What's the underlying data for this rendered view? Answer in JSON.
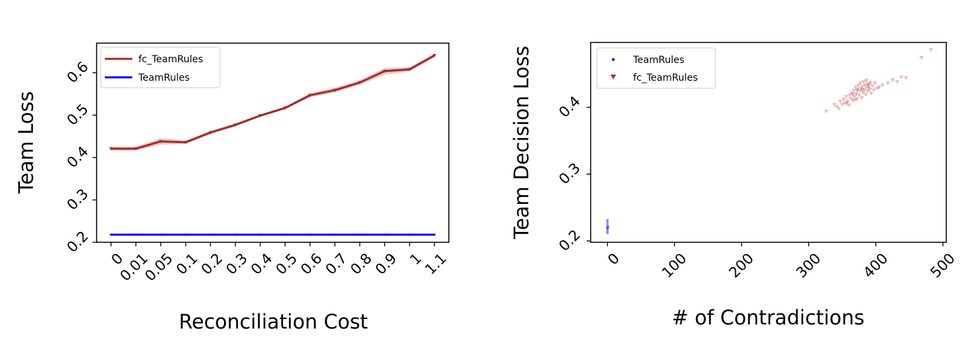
{
  "chart_data": [
    {
      "type": "line",
      "xlabel": "Reconciliation Cost",
      "ylabel": "Team Loss",
      "categories": [
        "0",
        "0.01",
        "0.05",
        "0.1",
        "0.2",
        "0.3",
        "0.4",
        "0.5",
        "0.6",
        "0.7",
        "0.8",
        "0.9",
        "1",
        "1.1"
      ],
      "ylim": [
        0.2,
        0.67
      ],
      "yticks": [
        "0.2",
        "0.3",
        "0.4",
        "0.5",
        "0.6"
      ],
      "grid": false,
      "legend_position": "top-left",
      "series": [
        {
          "name": "fc_TeamRules",
          "color": "#a52a2a",
          "marker": "triangle-down",
          "values": [
            0.421,
            0.421,
            0.438,
            0.436,
            0.459,
            0.477,
            0.499,
            0.517,
            0.547,
            0.559,
            0.577,
            0.604,
            0.608,
            0.641
          ],
          "ci_low": [
            0.416,
            0.416,
            0.43,
            0.432,
            0.455,
            0.473,
            0.496,
            0.514,
            0.542,
            0.553,
            0.571,
            0.595,
            0.603,
            0.636
          ],
          "ci_high": [
            0.426,
            0.426,
            0.446,
            0.44,
            0.463,
            0.481,
            0.502,
            0.52,
            0.552,
            0.565,
            0.583,
            0.611,
            0.613,
            0.646
          ]
        },
        {
          "name": "TeamRules",
          "color": "#0000ff",
          "marker": "point",
          "values": [
            0.218,
            0.218,
            0.218,
            0.218,
            0.218,
            0.218,
            0.218,
            0.218,
            0.218,
            0.218,
            0.218,
            0.218,
            0.218,
            0.218
          ]
        }
      ]
    },
    {
      "type": "scatter",
      "xlabel": "# of Contradictions",
      "ylabel": "Team Decision Loss",
      "xlim": [
        -25,
        505
      ],
      "ylim": [
        0.198,
        0.497
      ],
      "xticks": [
        "0",
        "100",
        "200",
        "300",
        "400",
        "500"
      ],
      "yticks": [
        "0.2",
        "0.3",
        "0.4"
      ],
      "grid": false,
      "legend_position": "top-left",
      "series": [
        {
          "name": "TeamRules",
          "color": "#0000ff",
          "marker": "point",
          "points": [
            [
              0,
              0.229
            ],
            [
              0,
              0.226
            ],
            [
              0,
              0.223
            ],
            [
              0,
              0.22
            ],
            [
              0,
              0.217
            ],
            [
              0,
              0.214
            ],
            [
              0,
              0.212
            ],
            [
              0,
              0.231
            ],
            [
              1,
              0.221
            ],
            [
              0,
              0.219
            ]
          ]
        },
        {
          "name": "fc_TeamRules",
          "color": "#a52a2a",
          "marker": "triangle-down",
          "points": [
            [
              326,
              0.394
            ],
            [
              338,
              0.404
            ],
            [
              342,
              0.401
            ],
            [
              347,
              0.409
            ],
            [
              350,
              0.404
            ],
            [
              352,
              0.412
            ],
            [
              354,
              0.406
            ],
            [
              356,
              0.416
            ],
            [
              358,
              0.409
            ],
            [
              360,
              0.403
            ],
            [
              361,
              0.418
            ],
            [
              363,
              0.413
            ],
            [
              364,
              0.421
            ],
            [
              366,
              0.41
            ],
            [
              367,
              0.425
            ],
            [
              368,
              0.416
            ],
            [
              370,
              0.43
            ],
            [
              371,
              0.42
            ],
            [
              372,
              0.412
            ],
            [
              373,
              0.427
            ],
            [
              374,
              0.433
            ],
            [
              375,
              0.418
            ],
            [
              376,
              0.424
            ],
            [
              377,
              0.436
            ],
            [
              378,
              0.428
            ],
            [
              379,
              0.414
            ],
            [
              380,
              0.431
            ],
            [
              381,
              0.422
            ],
            [
              382,
              0.438
            ],
            [
              383,
              0.426
            ],
            [
              384,
              0.433
            ],
            [
              385,
              0.419
            ],
            [
              386,
              0.44
            ],
            [
              387,
              0.429
            ],
            [
              388,
              0.424
            ],
            [
              389,
              0.435
            ],
            [
              390,
              0.431
            ],
            [
              391,
              0.427
            ],
            [
              392,
              0.437
            ],
            [
              393,
              0.421
            ],
            [
              395,
              0.432
            ],
            [
              397,
              0.426
            ],
            [
              399,
              0.436
            ],
            [
              402,
              0.428
            ],
            [
              405,
              0.43
            ],
            [
              410,
              0.433
            ],
            [
              418,
              0.436
            ],
            [
              425,
              0.441
            ],
            [
              432,
              0.438
            ],
            [
              438,
              0.445
            ],
            [
              445,
              0.444
            ],
            [
              468,
              0.474
            ],
            [
              482,
              0.486
            ],
            [
              345,
              0.398
            ],
            [
              357,
              0.406
            ],
            [
              366,
              0.419
            ],
            [
              372,
              0.425
            ],
            [
              380,
              0.426
            ],
            [
              388,
              0.433
            ],
            [
              369,
              0.411
            ]
          ]
        }
      ]
    }
  ]
}
